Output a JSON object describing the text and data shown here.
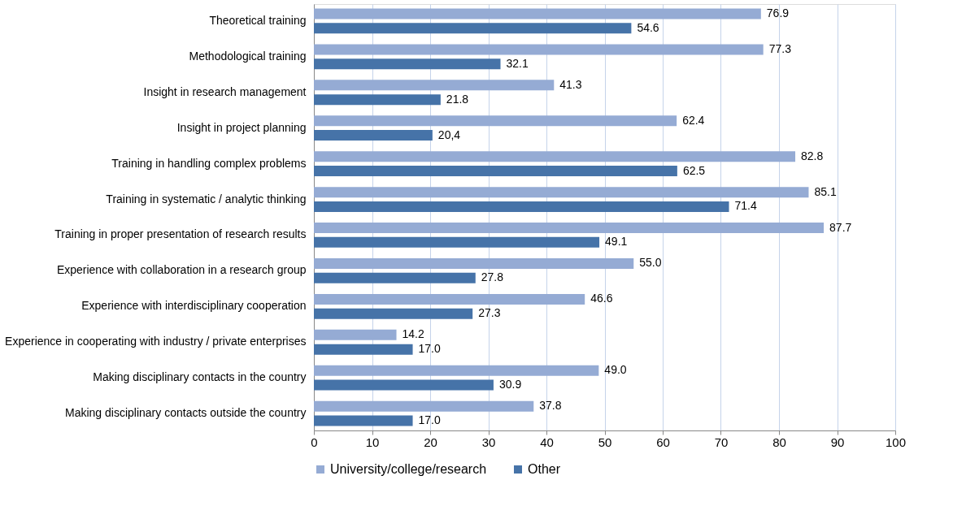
{
  "chart_data": {
    "type": "bar",
    "orientation": "horizontal",
    "categories": [
      "Theoretical training",
      "Methodological training",
      "Insight in research management",
      "Insight in project planning",
      "Training in handling complex problems",
      "Training in systematic / analytic thinking",
      "Training in proper presentation of research results",
      "Experience with collaboration in a research group",
      "Experience with interdisciplinary cooperation",
      "Experience in cooperating with industry / private enterprises",
      "Making disciplinary contacts in the country",
      "Making disciplinary contacts outside the country"
    ],
    "series": [
      {
        "name": "University/college/research",
        "color": "#95abd4",
        "values": [
          76.9,
          77.3,
          41.3,
          62.4,
          82.8,
          85.1,
          87.7,
          55.0,
          46.6,
          14.2,
          49.0,
          37.8
        ],
        "value_labels": [
          "76.9",
          "77.3",
          "41.3",
          "62.4",
          "82.8",
          "85.1",
          "87.7",
          "55.0",
          "46.6",
          "14.2",
          "49.0",
          "37.8"
        ]
      },
      {
        "name": "Other",
        "color": "#4673a8",
        "values": [
          54.6,
          32.1,
          21.8,
          20.4,
          62.5,
          71.4,
          49.1,
          27.8,
          27.3,
          17.0,
          30.9,
          17.0
        ],
        "value_labels": [
          "54.6",
          "32.1",
          "21.8",
          "20,4",
          "62.5",
          "71.4",
          "49.1",
          "27.8",
          "27.3",
          "17.0",
          "30.9",
          "17.0"
        ]
      }
    ],
    "xlim": [
      0,
      100
    ],
    "xticks": [
      0,
      10,
      20,
      30,
      40,
      50,
      60,
      70,
      80,
      90,
      100
    ],
    "grid": "x",
    "legend": "bottom"
  }
}
